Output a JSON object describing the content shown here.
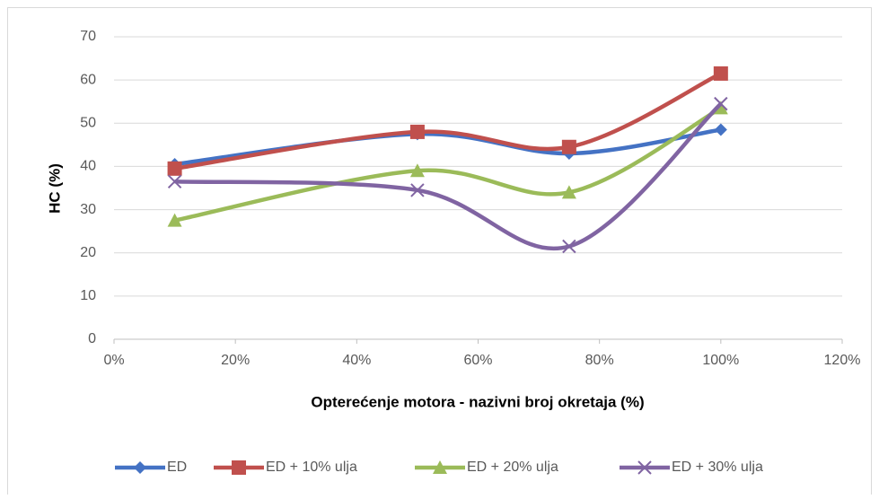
{
  "chart_data": {
    "type": "line",
    "x_label": "Opterećenje motora - nazivni broj okretaja (%)",
    "y_label": "HC  (%)",
    "x": [
      10,
      50,
      75,
      100
    ],
    "series": [
      {
        "name": "ED",
        "color": "#4472c4",
        "marker": "diamond",
        "values": [
          40.5,
          47.5,
          43,
          48.5
        ]
      },
      {
        "name": "ED + 10% ulja",
        "color": "#c0504d",
        "marker": "square",
        "values": [
          39.5,
          48,
          44.5,
          61.5
        ]
      },
      {
        "name": "ED + 20% ulja",
        "color": "#9bbb59",
        "marker": "triangle",
        "values": [
          27.5,
          39,
          34,
          53.5
        ]
      },
      {
        "name": "ED + 30% ulja",
        "color": "#8064a2",
        "marker": "x",
        "values": [
          36.5,
          34.5,
          21.5,
          54.5
        ]
      }
    ],
    "smooth": true,
    "xlim": [
      0,
      120
    ],
    "xticks": [
      {
        "value": 0,
        "label": "0%"
      },
      {
        "value": 20,
        "label": "20%"
      },
      {
        "value": 40,
        "label": "40%"
      },
      {
        "value": 60,
        "label": "60%"
      },
      {
        "value": 80,
        "label": "80%"
      },
      {
        "value": 100,
        "label": "100%"
      },
      {
        "value": 120,
        "label": "120%"
      }
    ],
    "ylim": [
      0,
      70
    ],
    "yticks": [
      0,
      10,
      20,
      30,
      40,
      50,
      60,
      70
    ],
    "grid": true,
    "legend": "bottom"
  }
}
